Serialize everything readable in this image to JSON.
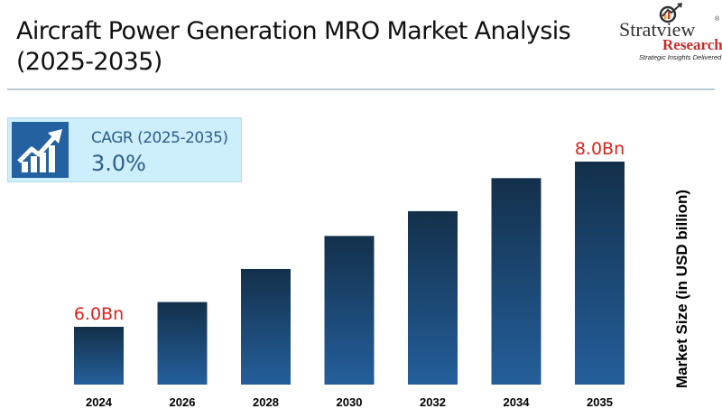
{
  "header": {
    "title_line1": "Aircraft Power Generation MRO Market Analysis",
    "title_line2": "(2025-2035)"
  },
  "logo": {
    "brand": "Stratview",
    "registered": "®",
    "sub": "Research",
    "tagline": "Strategic Insights Delivered"
  },
  "cagr_box": {
    "icon": "growth-chart-icon",
    "label": "CAGR (2025-2035)",
    "value": "3.0%"
  },
  "colors": {
    "bar_top": "#13304a",
    "bar_bottom": "#245f9b",
    "label_red": "#d9241c",
    "accent_blue": "#2361a0"
  },
  "chart_data": {
    "type": "bar",
    "title": "Aircraft Power Generation MRO Market Analysis (2025-2035)",
    "xlabel": "",
    "ylabel": "Market Size (in USD billion)",
    "categories": [
      "2024",
      "2026",
      "2028",
      "2030",
      "2032",
      "2034",
      "2035"
    ],
    "values": [
      6.0,
      6.3,
      6.7,
      7.1,
      7.4,
      7.8,
      8.0
    ],
    "data_labels": [
      {
        "category": "2024",
        "text": "6.0Bn"
      },
      {
        "category": "2035",
        "text": "8.0Bn"
      }
    ],
    "grid": false,
    "legend": "none"
  }
}
